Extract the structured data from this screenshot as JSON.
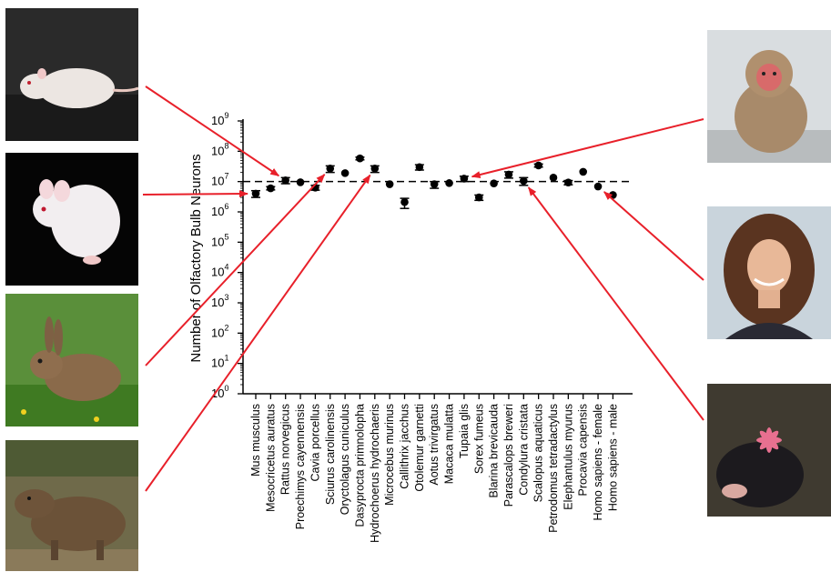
{
  "chart_data": {
    "type": "scatter",
    "ylabel": "Number of Olfactory Bulb Neurons",
    "yscale": "log",
    "ylim": [
      1,
      1000000000
    ],
    "yticks": [
      {
        "base": "10",
        "exp": "0"
      },
      {
        "base": "10",
        "exp": "1"
      },
      {
        "base": "10",
        "exp": "2"
      },
      {
        "base": "10",
        "exp": "3"
      },
      {
        "base": "10",
        "exp": "4"
      },
      {
        "base": "10",
        "exp": "5"
      },
      {
        "base": "10",
        "exp": "6"
      },
      {
        "base": "10",
        "exp": "7"
      },
      {
        "base": "10",
        "exp": "8"
      },
      {
        "base": "10",
        "exp": "9"
      }
    ],
    "reference_line": 10000000,
    "categories": [
      "Mus musculus",
      "Mesocricetus auratus",
      "Rattus norvegicus",
      "Proechimys cayennensis",
      "Cavia porcellus",
      "Sciurus carolinensis",
      "Oryctolagus cuniculus",
      "Dasyprocta primnolopha",
      "Hydrochoerus hydrochaeris",
      "Microcebus murinus",
      "Callithrix jacchus",
      "Otolemur garnetti",
      "Aotus trivirgatus",
      "Macaca mulatta",
      "Tupaia glis",
      "Sorex fumeus",
      "Blarina brevicauda",
      "Parascalops breweri",
      "Condylura cristata",
      "Scalopus aquaticus",
      "Petrodomus tetradactylus",
      "Elephantulus myurus",
      "Procavia capensis",
      "Homo sapiens - female",
      "Homo sapiens - male"
    ],
    "values": [
      4000000,
      6000000,
      11000000,
      9500000,
      6300000,
      27000000,
      19000000,
      58000000,
      27000000,
      8200000,
      2100000,
      30000000,
      8200000,
      8900000,
      12500000,
      3000000,
      8700000,
      17000000,
      10500000,
      34000000,
      13500000,
      9300000,
      21000000,
      6900000,
      3600000
    ],
    "err_low": [
      3000000,
      5300000,
      8500000,
      9500000,
      5200000,
      20000000,
      19000000,
      52000000,
      20000000,
      8200000,
      1300000,
      24000000,
      6000000,
      8900000,
      10000000,
      2400000,
      8700000,
      13000000,
      7500000,
      30000000,
      13500000,
      7800000,
      21000000,
      6900000,
      3600000
    ],
    "err_high": [
      5000000,
      6800000,
      13500000,
      9500000,
      7500000,
      33000000,
      19000000,
      64000000,
      33000000,
      8200000,
      2800000,
      36000000,
      10000000,
      8900000,
      15000000,
      3600000,
      8700000,
      21000000,
      13500000,
      38000000,
      13500000,
      10800000,
      21000000,
      6900000,
      3600000
    ],
    "grid": false,
    "legend": "none"
  },
  "photos": [
    {
      "name": "white-rat-photo",
      "bg": "#2a2a2a",
      "fg": "#ece6e2",
      "arrow_to": "Rattus norvegicus"
    },
    {
      "name": "white-mouse-photo",
      "bg": "#050505",
      "fg": "#f2eef0",
      "arrow_to": "Mus musculus"
    },
    {
      "name": "rabbit-photo",
      "bg": "#4f8a2c",
      "fg": "#8a6a4a",
      "arrow_to": "Sciurus carolinensis"
    },
    {
      "name": "capybara-photo",
      "bg": "#6f6a4a",
      "fg": "#6b5238",
      "arrow_to": "Hydrochoerus hydrochaeris"
    },
    {
      "name": "macaque-photo",
      "bg": "#d9dde0",
      "fg": "#a88a6a",
      "arrow_to": "Tupaia glis"
    },
    {
      "name": "woman-portrait-photo",
      "bg": "#c9d4dc",
      "fg": "#5a3420",
      "arrow_to": "Homo sapiens - female"
    },
    {
      "name": "star-nosed-mole-photo",
      "bg": "#3f3a30",
      "fg": "#1c1a1e",
      "arrow_to": "Condylura cristata"
    }
  ],
  "colors": {
    "arrow": "#e8202a",
    "marker": "#000000",
    "axis": "#000000"
  }
}
